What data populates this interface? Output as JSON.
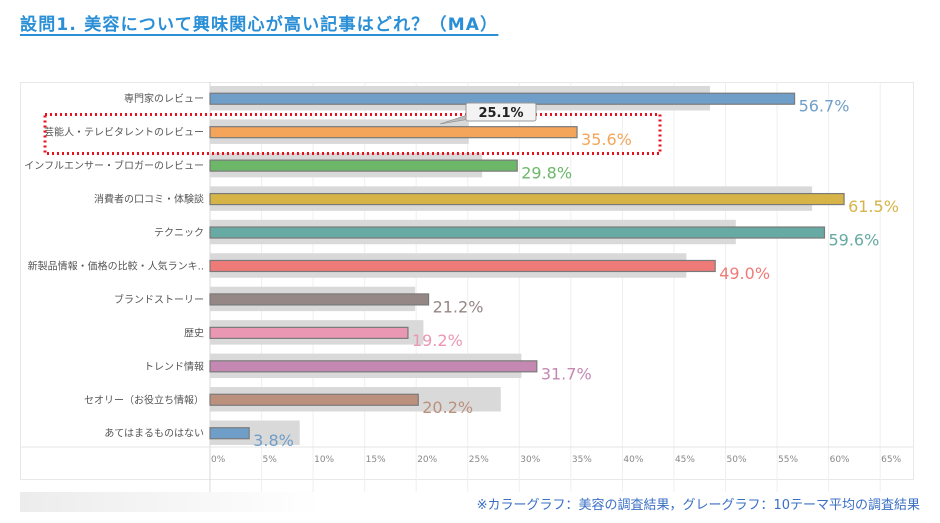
{
  "page": {
    "title": "設問1. 美容について興味関心が高い記事はどれ？（MA）",
    "footnote": "※カラーグラフ：美容の調査結果，グレーグラフ：10テーマ平均の調査結果"
  },
  "chart_data": {
    "type": "bar",
    "orientation": "horizontal",
    "title": "設問1. 美容について興味関心が高い記事はどれ？（MA）",
    "xlabel": "",
    "ylabel": "",
    "xlim": [
      0,
      65
    ],
    "x_ticks": [
      "0%",
      "5%",
      "10%",
      "15%",
      "20%",
      "25%",
      "30%",
      "35%",
      "40%",
      "45%",
      "50%",
      "55%",
      "60%",
      "65%"
    ],
    "grid": true,
    "categories": [
      "専門家のレビュー",
      "芸能人・テレビタレントのレビュー",
      "インフルエンサー・ブロガーのレビュー",
      "消費者の口コミ・体験談",
      "テクニック",
      "新製品情報・価格の比較・人気ランキ..",
      "ブランドストーリー",
      "歴史",
      "トレンド情報",
      "セオリー（お役立ち情報）",
      "あてはまるものはない"
    ],
    "series": [
      {
        "name": "美容の調査結果",
        "values": [
          56.7,
          35.6,
          29.8,
          61.5,
          59.6,
          49.0,
          21.2,
          19.2,
          31.7,
          20.2,
          3.8
        ],
        "labels": [
          "56.7%",
          "35.6%",
          "29.8%",
          "61.5%",
          "59.6%",
          "49.0%",
          "21.2%",
          "19.2%",
          "31.7%",
          "20.2%",
          "3.8%"
        ],
        "colors": [
          "#6f9ec9",
          "#f5a55a",
          "#6db868",
          "#d6b447",
          "#67a9a3",
          "#ef7b78",
          "#948785",
          "#ea97b3",
          "#c488b3",
          "#bb917d",
          "#6f9ec9"
        ]
      },
      {
        "name": "10テーマ平均の調査結果",
        "values": [
          48.5,
          25.1,
          26.4,
          58.4,
          51.0,
          46.2,
          19.9,
          20.7,
          30.2,
          28.2,
          8.7
        ],
        "color": "#d9d9d9"
      }
    ],
    "annotations": [
      {
        "category_index": 1,
        "text": "25.1%",
        "type": "callout",
        "highlight": "red-dotted-box"
      }
    ],
    "legend": "bottom-right"
  }
}
